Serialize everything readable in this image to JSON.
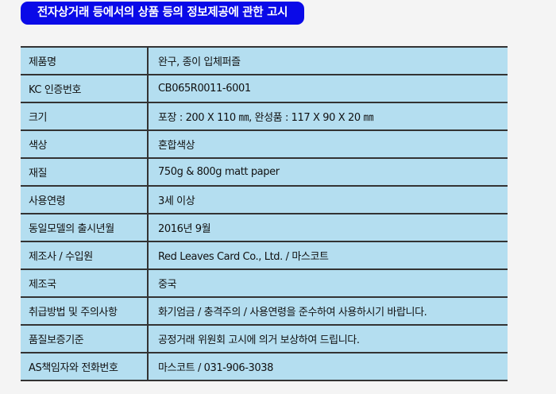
{
  "title": "전자상거래 등에서의 상품 등의 정보제공에 관한 고시",
  "rows": [
    {
      "label": "제품명",
      "value": "완구, 종이 입체퍼즐"
    },
    {
      "label": "KC 인증번호",
      "value": "CB065R0011-6001"
    },
    {
      "label": "크기",
      "value": "포장 : 200 X 110 ㎜, 완성품 : 117 X 90 X 20 ㎜"
    },
    {
      "label": "색상",
      "value": "혼합색상"
    },
    {
      "label": "재질",
      "value": "750g & 800g matt paper"
    },
    {
      "label": "사용연령",
      "value": "3세 이상"
    },
    {
      "label": "동일모델의 출시년월",
      "value": "2016년 9월"
    },
    {
      "label": "제조사 / 수입원",
      "value": "Red Leaves Card Co., Ltd. / 마스코트"
    },
    {
      "label": "제조국",
      "value": "중국"
    },
    {
      "label": "취급방법 및 주의사항",
      "value": "화기엄금 / 충격주의 / 사용연령을 준수하여 사용하시기 바랍니다."
    },
    {
      "label": "품질보증기준",
      "value": "공정거래 위원회 고시에 의거 보상하여 드립니다."
    },
    {
      "label": "AS책임자와 전화번호",
      "value": "마스코트 / 031-906-3038"
    }
  ]
}
